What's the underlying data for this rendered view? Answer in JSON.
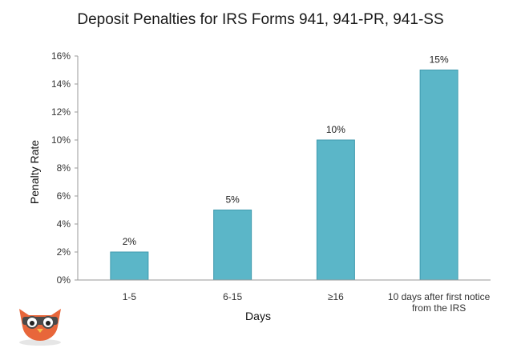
{
  "chart_data": {
    "type": "bar",
    "title": "Deposit Penalties for IRS Forms 941, 941-PR, 941-SS",
    "xlabel": "Days",
    "ylabel": "Penalty Rate",
    "categories": [
      "1-5",
      "6-15",
      "≥16",
      "10 days after first notice from the IRS"
    ],
    "category_lines": [
      [
        "1-5"
      ],
      [
        "6-15"
      ],
      [
        "≥16"
      ],
      [
        "10 days after first notice",
        "from the IRS"
      ]
    ],
    "values": [
      2,
      5,
      10,
      15
    ],
    "data_labels": [
      "2%",
      "5%",
      "10%",
      "15%"
    ],
    "yticks": [
      0,
      2,
      4,
      6,
      8,
      10,
      12,
      14,
      16
    ],
    "ytick_labels": [
      "0%",
      "2%",
      "4%",
      "6%",
      "8%",
      "10%",
      "12%",
      "14%",
      "16%"
    ],
    "ylim": [
      0,
      16
    ],
    "grid": false,
    "legend": "none",
    "colors": {
      "bar": "#5bb6c8",
      "bar_edge": "#3f9aae",
      "axis": "#9a9a9a"
    }
  },
  "logo": {
    "icon": "owl-mascot-icon"
  }
}
